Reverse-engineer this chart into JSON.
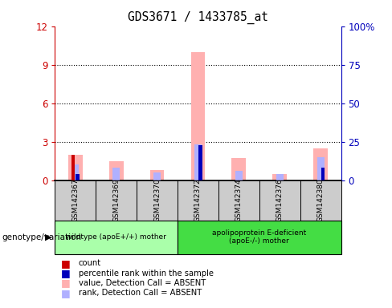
{
  "title": "GDS3671 / 1433785_at",
  "samples": [
    "GSM142367",
    "GSM142369",
    "GSM142370",
    "GSM142372",
    "GSM142374",
    "GSM142376",
    "GSM142380"
  ],
  "count": [
    2.0,
    0,
    0,
    0,
    0,
    0,
    0
  ],
  "percentile_rank": [
    0.5,
    0,
    0,
    2.7,
    0,
    0,
    1.0
  ],
  "value_absent": [
    2.0,
    1.5,
    0.8,
    10.0,
    1.7,
    0.5,
    2.5
  ],
  "rank_absent": [
    1.2,
    1.0,
    0.6,
    2.8,
    0.7,
    0.5,
    1.8
  ],
  "ylim_left": [
    0,
    12
  ],
  "ylim_right": [
    0,
    100
  ],
  "yticks_left": [
    0,
    3,
    6,
    9,
    12
  ],
  "yticks_right": [
    0,
    25,
    50,
    75,
    100
  ],
  "ytick_labels_left": [
    "0",
    "3",
    "6",
    "9",
    "12"
  ],
  "ytick_labels_right": [
    "0",
    "25",
    "50",
    "75",
    "100%"
  ],
  "left_axis_color": "#cc0000",
  "right_axis_color": "#0000bb",
  "count_color": "#cc0000",
  "percentile_color": "#0000bb",
  "value_absent_color": "#ffb0b0",
  "rank_absent_color": "#b0b0ff",
  "bg_color": "#cccccc",
  "group1_label": "wildtype (apoE+/+) mother",
  "group2_label": "apolipoprotein E-deficient\n(apoE-/-) mother",
  "group1_color": "#aaffaa",
  "group2_color": "#44dd44",
  "legend_count": "count",
  "legend_percentile": "percentile rank within the sample",
  "legend_value_absent": "value, Detection Call = ABSENT",
  "legend_rank_absent": "rank, Detection Call = ABSENT",
  "genotype_label": "genotype/variation"
}
